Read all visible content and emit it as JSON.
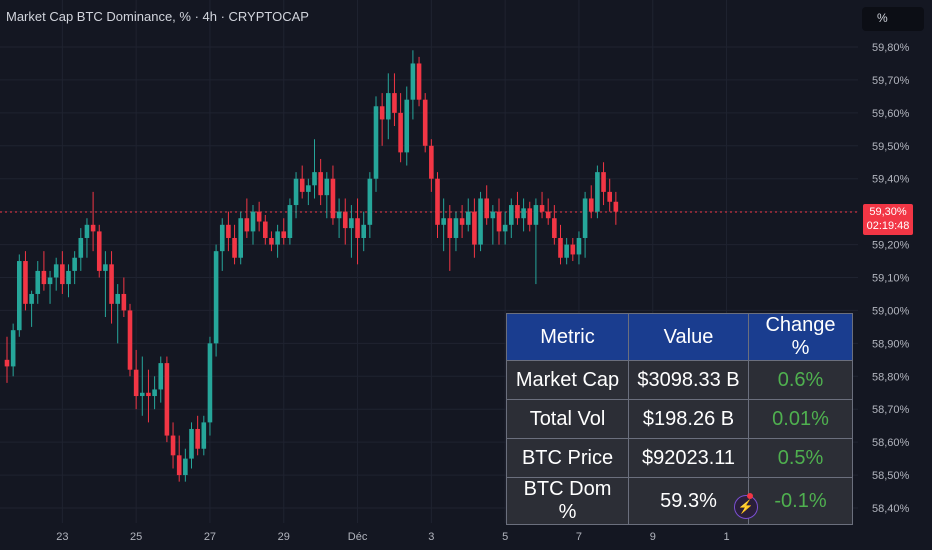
{
  "header": {
    "title": "Market Cap BTC Dominance, % · 4h · CRYPTOCAP",
    "unit_button": "%"
  },
  "price_label": {
    "value": "59,30%",
    "countdown": "02:19:48"
  },
  "colors": {
    "up": "#26a69a",
    "down": "#f23645",
    "background": "#141722",
    "table_header": "#1a3d8f",
    "positive_change": "#4fb04f"
  },
  "metrics_table": {
    "headers": [
      "Metric",
      "Value",
      "Change %"
    ],
    "rows": [
      [
        "Market Cap",
        "$3098.33 B",
        "0.6%"
      ],
      [
        "Total Vol",
        "$198.26 B",
        "0.01%"
      ],
      [
        "BTC Price",
        "$92023.11",
        "0.5%"
      ],
      [
        "BTC Dom %",
        "59.3%",
        "-0.1%"
      ]
    ]
  },
  "icons": {
    "lightning": "lightning-icon"
  },
  "chart_data": {
    "type": "candlestick",
    "title": "Market Cap BTC Dominance, % · 4h · CRYPTOCAP",
    "ylim": [
      58.36,
      59.84
    ],
    "y_ticks": [
      "59,80%",
      "59,70%",
      "59,60%",
      "59,50%",
      "59,40%",
      "59,30%",
      "59,20%",
      "59,10%",
      "59,00%",
      "58,90%",
      "58,80%",
      "58,70%",
      "58,60%",
      "58,50%",
      "58,40%"
    ],
    "y_tick_values": [
      59.8,
      59.7,
      59.6,
      59.5,
      59.4,
      59.3,
      59.2,
      59.1,
      59.0,
      58.9,
      58.8,
      58.7,
      58.6,
      58.5,
      58.4
    ],
    "x_ticks": [
      "23",
      "25",
      "27",
      "29",
      "Déc",
      "3",
      "5",
      "7",
      "9",
      "1"
    ],
    "x_tick_index": [
      9,
      21,
      33,
      45,
      57,
      69,
      81,
      93,
      105,
      117
    ],
    "current_value": 59.3,
    "grid": true,
    "candles": [
      [
        58.85,
        58.92,
        58.78,
        58.83
      ],
      [
        58.83,
        58.96,
        58.8,
        58.94
      ],
      [
        58.94,
        59.17,
        58.92,
        59.15
      ],
      [
        59.15,
        59.18,
        59.0,
        59.02
      ],
      [
        59.02,
        59.06,
        58.95,
        59.05
      ],
      [
        59.05,
        59.15,
        59.02,
        59.12
      ],
      [
        59.12,
        59.18,
        59.06,
        59.08
      ],
      [
        59.08,
        59.12,
        59.02,
        59.1
      ],
      [
        59.1,
        59.16,
        59.06,
        59.14
      ],
      [
        59.14,
        59.18,
        59.05,
        59.08
      ],
      [
        59.08,
        59.14,
        59.04,
        59.12
      ],
      [
        59.12,
        59.18,
        59.08,
        59.16
      ],
      [
        59.16,
        59.25,
        59.12,
        59.22
      ],
      [
        59.22,
        59.28,
        59.16,
        59.26
      ],
      [
        59.26,
        59.36,
        59.18,
        59.24
      ],
      [
        59.24,
        59.26,
        59.1,
        59.12
      ],
      [
        59.12,
        59.18,
        58.98,
        59.14
      ],
      [
        59.14,
        59.18,
        58.96,
        59.02
      ],
      [
        59.02,
        59.08,
        58.9,
        59.05
      ],
      [
        59.05,
        59.1,
        58.98,
        59.0
      ],
      [
        59.0,
        59.02,
        58.8,
        58.82
      ],
      [
        58.82,
        58.88,
        58.7,
        58.74
      ],
      [
        58.74,
        58.86,
        58.68,
        58.75
      ],
      [
        58.75,
        58.82,
        58.66,
        58.74
      ],
      [
        58.74,
        58.8,
        58.7,
        58.76
      ],
      [
        58.76,
        58.86,
        58.72,
        58.84
      ],
      [
        58.84,
        58.86,
        58.6,
        58.62
      ],
      [
        58.62,
        58.66,
        58.52,
        58.56
      ],
      [
        58.56,
        58.62,
        58.48,
        58.5
      ],
      [
        58.5,
        58.58,
        58.48,
        58.55
      ],
      [
        58.55,
        58.66,
        58.52,
        58.64
      ],
      [
        58.64,
        58.68,
        58.56,
        58.58
      ],
      [
        58.58,
        58.68,
        58.56,
        58.66
      ],
      [
        58.66,
        58.92,
        58.62,
        58.9
      ],
      [
        58.9,
        59.2,
        58.86,
        59.18
      ],
      [
        59.18,
        59.28,
        59.12,
        59.26
      ],
      [
        59.26,
        59.3,
        59.18,
        59.22
      ],
      [
        59.22,
        59.26,
        59.14,
        59.16
      ],
      [
        59.16,
        59.3,
        59.14,
        59.28
      ],
      [
        59.28,
        59.34,
        59.22,
        59.24
      ],
      [
        59.24,
        59.32,
        59.2,
        59.3
      ],
      [
        59.3,
        59.33,
        59.24,
        59.27
      ],
      [
        59.27,
        59.29,
        59.2,
        59.22
      ],
      [
        59.22,
        59.24,
        59.18,
        59.2
      ],
      [
        59.2,
        59.26,
        59.16,
        59.24
      ],
      [
        59.24,
        59.28,
        59.2,
        59.22
      ],
      [
        59.22,
        59.34,
        59.2,
        59.32
      ],
      [
        59.32,
        59.42,
        59.28,
        59.4
      ],
      [
        59.4,
        59.44,
        59.34,
        59.36
      ],
      [
        59.36,
        59.4,
        59.32,
        59.38
      ],
      [
        59.38,
        59.52,
        59.34,
        59.42
      ],
      [
        59.42,
        59.46,
        59.32,
        59.35
      ],
      [
        59.35,
        59.42,
        59.28,
        59.4
      ],
      [
        59.4,
        59.44,
        59.26,
        59.28
      ],
      [
        59.28,
        59.34,
        59.22,
        59.3
      ],
      [
        59.3,
        59.34,
        59.2,
        59.25
      ],
      [
        59.25,
        59.32,
        59.16,
        59.28
      ],
      [
        59.28,
        59.34,
        59.14,
        59.22
      ],
      [
        59.22,
        59.3,
        59.18,
        59.26
      ],
      [
        59.26,
        59.42,
        59.22,
        59.4
      ],
      [
        59.4,
        59.65,
        59.36,
        59.62
      ],
      [
        59.62,
        59.66,
        59.5,
        59.58
      ],
      [
        59.58,
        59.72,
        59.52,
        59.66
      ],
      [
        59.66,
        59.72,
        59.56,
        59.6
      ],
      [
        59.6,
        59.66,
        59.45,
        59.48
      ],
      [
        59.48,
        59.68,
        59.44,
        59.64
      ],
      [
        59.64,
        59.79,
        59.58,
        59.75
      ],
      [
        59.75,
        59.77,
        59.62,
        59.64
      ],
      [
        59.64,
        59.66,
        59.48,
        59.5
      ],
      [
        59.5,
        59.52,
        59.36,
        59.4
      ],
      [
        59.4,
        59.42,
        59.22,
        59.26
      ],
      [
        59.26,
        59.34,
        59.18,
        59.28
      ],
      [
        59.28,
        59.32,
        59.12,
        59.22
      ],
      [
        59.22,
        59.3,
        59.18,
        59.28
      ],
      [
        59.28,
        59.32,
        59.22,
        59.26
      ],
      [
        59.26,
        59.34,
        59.24,
        59.3
      ],
      [
        59.3,
        59.34,
        59.16,
        59.2
      ],
      [
        59.2,
        59.36,
        59.18,
        59.34
      ],
      [
        59.34,
        59.38,
        59.26,
        59.28
      ],
      [
        59.28,
        59.32,
        59.2,
        59.3
      ],
      [
        59.3,
        59.34,
        59.2,
        59.24
      ],
      [
        59.24,
        59.3,
        59.2,
        59.26
      ],
      [
        59.26,
        59.34,
        59.22,
        59.32
      ],
      [
        59.32,
        59.36,
        59.26,
        59.28
      ],
      [
        59.28,
        59.34,
        59.24,
        59.31
      ],
      [
        59.31,
        59.33,
        59.24,
        59.26
      ],
      [
        59.26,
        59.34,
        59.08,
        59.32
      ],
      [
        59.32,
        59.36,
        59.28,
        59.3
      ],
      [
        59.3,
        59.34,
        59.26,
        59.28
      ],
      [
        59.28,
        59.32,
        59.2,
        59.22
      ],
      [
        59.22,
        59.26,
        59.14,
        59.16
      ],
      [
        59.16,
        59.22,
        59.14,
        59.2
      ],
      [
        59.2,
        59.22,
        59.15,
        59.17
      ],
      [
        59.17,
        59.24,
        59.14,
        59.22
      ],
      [
        59.22,
        59.36,
        59.16,
        59.34
      ],
      [
        59.34,
        59.38,
        59.28,
        59.3
      ],
      [
        59.3,
        59.44,
        59.28,
        59.42
      ],
      [
        59.42,
        59.45,
        59.32,
        59.36
      ],
      [
        59.36,
        59.4,
        59.3,
        59.33
      ],
      [
        59.33,
        59.36,
        59.26,
        59.3
      ]
    ]
  }
}
